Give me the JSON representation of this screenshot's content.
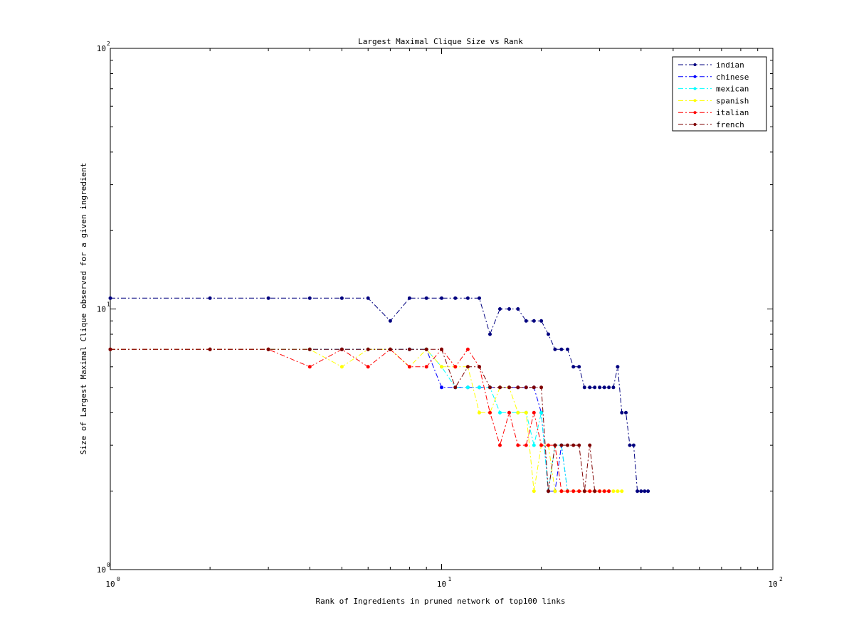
{
  "chart_data": {
    "type": "line",
    "title": "Largest Maximal Clique Size vs Rank",
    "xlabel": "Rank of Ingredients in pruned network of top100 links",
    "ylabel": "Size of Largest Maximal Clique observed for a given ingredient",
    "xscale": "log",
    "yscale": "log",
    "xlim": [
      1,
      100
    ],
    "ylim": [
      1,
      100
    ],
    "x_ticks": [
      {
        "base": "10",
        "exp": "0"
      },
      {
        "base": "10",
        "exp": "1"
      },
      {
        "base": "10",
        "exp": "2"
      }
    ],
    "y_ticks": [
      {
        "base": "10",
        "exp": "0"
      },
      {
        "base": "10",
        "exp": "1"
      },
      {
        "base": "10",
        "exp": "2"
      }
    ],
    "grid": false,
    "legend_position": "top-right",
    "series": [
      {
        "name": "indian",
        "color": "#00007f",
        "x": [
          1,
          2,
          3,
          4,
          5,
          6,
          7,
          8,
          9,
          10,
          11,
          12,
          13,
          14,
          15,
          16,
          17,
          18,
          19,
          20,
          21,
          22,
          23,
          24,
          25,
          26,
          27,
          28,
          29,
          30,
          31,
          32,
          33,
          34,
          35,
          36,
          37,
          38,
          39,
          40,
          41,
          42
        ],
        "y": [
          11,
          11,
          11,
          11,
          11,
          11,
          9,
          11,
          11,
          11,
          11,
          11,
          11,
          8,
          10,
          10,
          10,
          9,
          9,
          9,
          8,
          7,
          7,
          7,
          6,
          6,
          5,
          5,
          5,
          5,
          5,
          5,
          5,
          6,
          4,
          4,
          3,
          3,
          2,
          2,
          2,
          2
        ]
      },
      {
        "name": "chinese",
        "color": "#0000ff",
        "x": [
          1,
          2,
          3,
          4,
          5,
          6,
          7,
          8,
          9,
          10,
          11,
          12,
          13,
          14,
          15,
          16,
          17,
          18,
          19,
          20,
          21,
          22,
          23,
          24
        ],
        "y": [
          7,
          7,
          7,
          7,
          7,
          7,
          7,
          7,
          7,
          5,
          5,
          5,
          5,
          5,
          5,
          5,
          5,
          5,
          5,
          4,
          2,
          2,
          3,
          2
        ]
      },
      {
        "name": "mexican",
        "color": "#00ffff",
        "x": [
          1,
          2,
          3,
          4,
          5,
          6,
          7,
          8,
          9,
          10,
          11,
          12,
          13,
          14,
          15,
          16,
          17,
          18,
          19,
          20,
          21,
          22,
          23,
          24
        ],
        "y": [
          7,
          7,
          7,
          7,
          7,
          7,
          7,
          7,
          7,
          6,
          5,
          5,
          5,
          5,
          4,
          4,
          4,
          4,
          3,
          4,
          2,
          3,
          3,
          2
        ]
      },
      {
        "name": "spanish",
        "color": "#ffff00",
        "x": [
          1,
          2,
          3,
          4,
          5,
          6,
          7,
          8,
          9,
          10,
          11,
          12,
          13,
          14,
          15,
          16,
          17,
          18,
          19,
          20,
          21,
          22,
          23,
          24,
          25,
          26,
          27,
          28,
          29,
          30,
          31,
          32,
          33,
          34,
          35
        ],
        "y": [
          7,
          7,
          7,
          7,
          6,
          7,
          7,
          6,
          7,
          6,
          6,
          6,
          4,
          4,
          5,
          5,
          4,
          4,
          2,
          3,
          3,
          2,
          2,
          2,
          2,
          2,
          2,
          2,
          2,
          2,
          2,
          2,
          2,
          2,
          2
        ]
      },
      {
        "name": "italian",
        "color": "#ff0000",
        "x": [
          1,
          2,
          3,
          4,
          5,
          6,
          7,
          8,
          9,
          10,
          11,
          12,
          13,
          14,
          15,
          16,
          17,
          18,
          19,
          20,
          21,
          22,
          23,
          24,
          25,
          26,
          27,
          28,
          29,
          30,
          31,
          32
        ],
        "y": [
          7,
          7,
          7,
          6,
          7,
          6,
          7,
          6,
          6,
          7,
          6,
          7,
          6,
          4,
          3,
          4,
          3,
          3,
          4,
          3,
          3,
          3,
          2,
          2,
          2,
          2,
          2,
          2,
          2,
          2,
          2,
          2
        ]
      },
      {
        "name": "french",
        "color": "#7f0000",
        "x": [
          1,
          2,
          3,
          4,
          5,
          6,
          7,
          8,
          9,
          10,
          11,
          12,
          13,
          14,
          15,
          16,
          17,
          18,
          19,
          20,
          21,
          22,
          23,
          24,
          25,
          26,
          27,
          28,
          29
        ],
        "y": [
          7,
          7,
          7,
          7,
          7,
          7,
          7,
          7,
          7,
          7,
          5,
          6,
          6,
          5,
          5,
          5,
          5,
          5,
          5,
          5,
          2,
          3,
          3,
          3,
          3,
          3,
          2,
          3,
          2
        ]
      }
    ]
  }
}
